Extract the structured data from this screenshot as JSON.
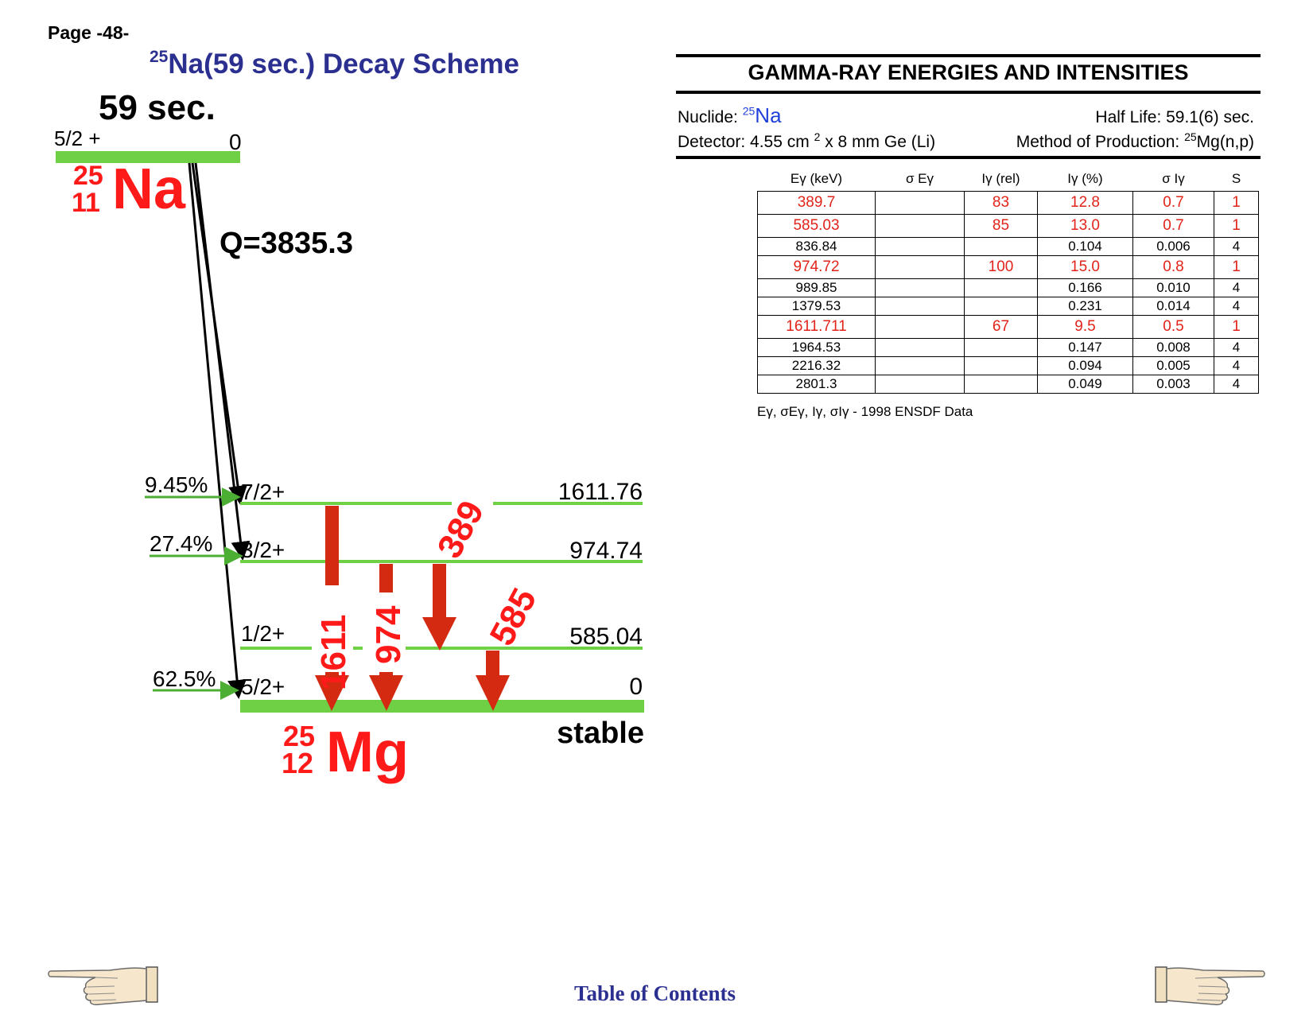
{
  "page": {
    "label": "Page -48-"
  },
  "scheme": {
    "title_super": "25",
    "title_text": "Na(59 sec.) Decay Scheme",
    "parent": {
      "half_life": "59 sec.",
      "spin": "5/2  +",
      "energy": "0",
      "mass_number": "25",
      "atomic_number": "11",
      "symbol": "Na"
    },
    "q_value": "Q=3835.3",
    "levels": [
      {
        "spin": "7/2+",
        "energy": "1611.76",
        "branch": "9.45%"
      },
      {
        "spin": "3/2+",
        "energy": "974.74",
        "branch": "27.4%"
      },
      {
        "spin": "1/2+",
        "energy": "585.04",
        "branch": ""
      },
      {
        "spin": "5/2+",
        "energy": "0",
        "branch": "62.5%"
      }
    ],
    "gammas": [
      "1611",
      "974",
      "389",
      "585"
    ],
    "daughter": {
      "mass_number": "25",
      "atomic_number": "12",
      "symbol": "Mg",
      "status": "stable"
    },
    "colors": {
      "level": "#6fcf45",
      "gamma": "#d42a12",
      "label_red": "#ff1a1a",
      "title": "#2b2f8f"
    }
  },
  "gamma_panel": {
    "title": "GAMMA-RAY ENERGIES AND INTENSITIES",
    "nuclide_label": "Nuclide:",
    "nuclide_super": "25",
    "nuclide_symbol": "Na",
    "half_life": "Half Life: 59.1(6) sec.",
    "detector": "Detector: 4.55 cm",
    "detector_super": "2",
    "detector_rest": "x 8 mm   Ge (Li)",
    "method_label": "Method of Production:",
    "method_super": "25",
    "method_value": "Mg(n,p)",
    "headers": [
      "Eγ (keV)",
      "σ Eγ",
      "Iγ (rel)",
      "Iγ (%)",
      "σ Iγ",
      "S"
    ],
    "rows": [
      {
        "e": "389.7",
        "se": "",
        "irel": "83",
        "ipct": "12.8",
        "si": "0.7",
        "s": "1",
        "highlight": true
      },
      {
        "e": "585.03",
        "se": "",
        "irel": "85",
        "ipct": "13.0",
        "si": "0.7",
        "s": "1",
        "highlight": true
      },
      {
        "e": "836.84",
        "se": "",
        "irel": "",
        "ipct": "0.104",
        "si": "0.006",
        "s": "4",
        "highlight": false
      },
      {
        "e": "974.72",
        "se": "",
        "irel": "100",
        "ipct": "15.0",
        "si": "0.8",
        "s": "1",
        "highlight": true
      },
      {
        "e": "989.85",
        "se": "",
        "irel": "",
        "ipct": "0.166",
        "si": "0.010",
        "s": "4",
        "highlight": false
      },
      {
        "e": "1379.53",
        "se": "",
        "irel": "",
        "ipct": "0.231",
        "si": "0.014",
        "s": "4",
        "highlight": false
      },
      {
        "e": "1611.711",
        "se": "",
        "irel": "67",
        "ipct": "9.5",
        "si": "0.5",
        "s": "1",
        "highlight": true
      },
      {
        "e": "1964.53",
        "se": "",
        "irel": "",
        "ipct": "0.147",
        "si": "0.008",
        "s": "4",
        "highlight": false
      },
      {
        "e": "2216.32",
        "se": "",
        "irel": "",
        "ipct": "0.094",
        "si": "0.005",
        "s": "4",
        "highlight": false
      },
      {
        "e": "2801.3",
        "se": "",
        "irel": "",
        "ipct": "0.049",
        "si": "0.003",
        "s": "4",
        "highlight": false
      }
    ],
    "source_prefix": "Eγ, σEγ, Iγ, σIγ -",
    "source_text": "1998 ENSDF Data"
  },
  "navigation": {
    "toc_label": "Table of Contents",
    "prev_icon": "pointing-hand-left-icon",
    "next_icon": "pointing-hand-right-icon"
  }
}
